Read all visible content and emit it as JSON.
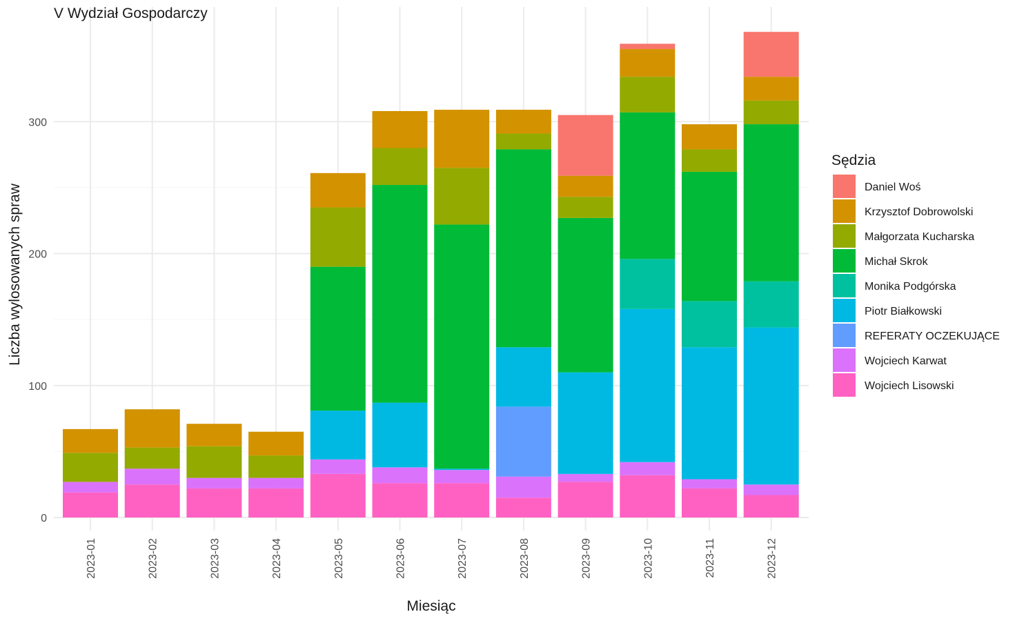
{
  "chart_data": {
    "type": "bar",
    "stacked": true,
    "title": "V Wydział Gospodarczy",
    "xlabel": "Miesiąc",
    "ylabel": "Liczba wylosowanych spraw",
    "ylim": [
      0,
      380
    ],
    "yticks": [
      0,
      100,
      200,
      300
    ],
    "grid": true,
    "legend": {
      "title": "Sędzia",
      "position": "right"
    },
    "categories": [
      "2023-01",
      "2023-02",
      "2023-03",
      "2023-04",
      "2023-05",
      "2023-06",
      "2023-07",
      "2023-08",
      "2023-09",
      "2023-10",
      "2023-11",
      "2023-12"
    ],
    "series": [
      {
        "name": "Daniel Woś",
        "color": "#F8766D",
        "values": [
          0,
          0,
          0,
          0,
          0,
          0,
          0,
          0,
          46,
          4,
          0,
          34
        ]
      },
      {
        "name": "Krzysztof Dobrowolski",
        "color": "#D39200",
        "values": [
          18,
          29,
          17,
          18,
          26,
          28,
          44,
          18,
          16,
          21,
          19,
          18
        ]
      },
      {
        "name": "Małgorzata Kucharska",
        "color": "#93AA00",
        "values": [
          22,
          16,
          24,
          17,
          45,
          28,
          43,
          12,
          16,
          27,
          17,
          18
        ]
      },
      {
        "name": "Michał Skrok",
        "color": "#00BA38",
        "values": [
          0,
          0,
          0,
          0,
          109,
          165,
          185,
          150,
          117,
          111,
          98,
          119
        ]
      },
      {
        "name": "Monika Podgórska",
        "color": "#00C19F",
        "values": [
          0,
          0,
          0,
          0,
          0,
          0,
          0,
          0,
          0,
          38,
          35,
          35
        ]
      },
      {
        "name": "Piotr Białkowski",
        "color": "#00B9E3",
        "values": [
          0,
          0,
          0,
          0,
          37,
          49,
          1,
          45,
          77,
          116,
          100,
          119
        ]
      },
      {
        "name": "REFERATY OCZEKUJĄCE",
        "color": "#619CFF",
        "values": [
          0,
          0,
          0,
          0,
          0,
          0,
          0,
          53,
          0,
          0,
          0,
          0
        ]
      },
      {
        "name": "Wojciech Karwat",
        "color": "#DB72FB",
        "values": [
          8,
          12,
          8,
          8,
          11,
          12,
          10,
          16,
          6,
          10,
          7,
          8
        ]
      },
      {
        "name": "Wojciech Lisowski",
        "color": "#FF61C3",
        "values": [
          19,
          25,
          22,
          22,
          33,
          26,
          26,
          15,
          27,
          32,
          22,
          17
        ]
      }
    ]
  }
}
